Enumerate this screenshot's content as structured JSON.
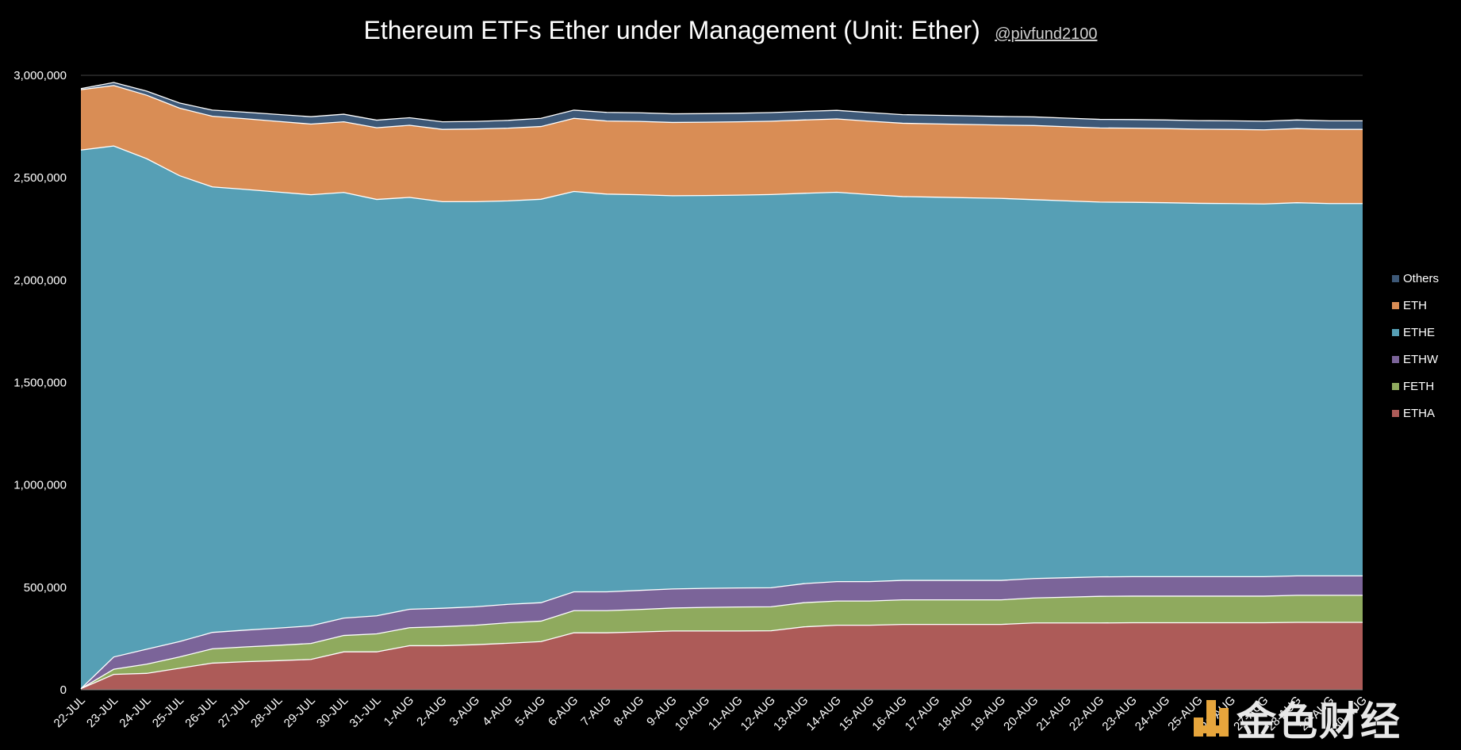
{
  "chart_data": {
    "type": "area",
    "title": "Ethereum ETFs Ether under Management (Unit: Ether)",
    "handle": "@pivfund2100",
    "xlabel": "",
    "ylabel": "",
    "ylim": [
      0,
      3000000
    ],
    "y_ticks": [
      0,
      500000,
      1000000,
      1500000,
      2000000,
      2500000,
      3000000
    ],
    "y_tick_labels": [
      "0",
      "500,000",
      "1,000,000",
      "1,500,000",
      "2,000,000",
      "2,500,000",
      "3,000,000"
    ],
    "stacked": true,
    "grid": "horizontal",
    "legend_position": "right",
    "categories": [
      "22-JUL",
      "23-JUL",
      "24-JUL",
      "25-JUL",
      "26-JUL",
      "27-JUL",
      "28-JUL",
      "29-JUL",
      "30-JUL",
      "31-JUL",
      "1-AUG",
      "2-AUG",
      "3-AUG",
      "4-AUG",
      "5-AUG",
      "6-AUG",
      "7-AUG",
      "8-AUG",
      "9-AUG",
      "10-AUG",
      "11-AUG",
      "12-AUG",
      "13-AUG",
      "14-AUG",
      "15-AUG",
      "16-AUG",
      "17-AUG",
      "18-AUG",
      "19-AUG",
      "20-AUG",
      "21-AUG",
      "22-AUG",
      "23-AUG",
      "24-AUG",
      "25-AUG",
      "26-AUG",
      "27-AUG",
      "28-AUG",
      "29-AUG",
      "30-AUG"
    ],
    "series": [
      {
        "name": "ETHA",
        "color": "#ad5b58",
        "values": [
          5000,
          75000,
          80000,
          105000,
          130000,
          137000,
          142000,
          148000,
          185000,
          185000,
          215000,
          215000,
          220000,
          227000,
          235000,
          278000,
          278000,
          282000,
          287000,
          287000,
          287000,
          288000,
          307000,
          315000,
          315000,
          319000,
          319000,
          319000,
          319000,
          326000,
          326000,
          326000,
          327000,
          327000,
          327000,
          327000,
          327000,
          329000,
          329000,
          329000
        ]
      },
      {
        "name": "FETH",
        "color": "#8faa5e",
        "values": [
          0,
          25000,
          45000,
          55000,
          70000,
          72000,
          75000,
          78000,
          80000,
          88000,
          88000,
          93000,
          95000,
          100000,
          100000,
          108000,
          108000,
          110000,
          112000,
          115000,
          117000,
          117000,
          118000,
          118000,
          118000,
          120000,
          120000,
          120000,
          120000,
          122000,
          126000,
          130000,
          130000,
          130000,
          130000,
          130000,
          130000,
          132000,
          132000,
          132000
        ]
      },
      {
        "name": "ETHW",
        "color": "#7b6499",
        "values": [
          0,
          60000,
          73000,
          75000,
          80000,
          82000,
          84000,
          86000,
          85000,
          88000,
          90000,
          90000,
          90000,
          90000,
          90000,
          92000,
          92000,
          93000,
          93000,
          93000,
          93000,
          93000,
          93000,
          95000,
          95000,
          95000,
          95000,
          95000,
          95000,
          95000,
          95000,
          95000,
          95000,
          95000,
          95000,
          95000,
          95000,
          95000,
          95000,
          95000
        ]
      },
      {
        "name": "ETHE",
        "color": "#569fb5",
        "values": [
          2630000,
          2495000,
          2395000,
          2275000,
          2175000,
          2152000,
          2129000,
          2105000,
          2078000,
          2033000,
          2011000,
          1985000,
          1978000,
          1970000,
          1970000,
          1955000,
          1942000,
          1932000,
          1920000,
          1918000,
          1918000,
          1920000,
          1906000,
          1901000,
          1890000,
          1874000,
          1871000,
          1868000,
          1865000,
          1850000,
          1840000,
          1830000,
          1828000,
          1826000,
          1823000,
          1822000,
          1820000,
          1822000,
          1818000,
          1818000
        ]
      },
      {
        "name": "ETH",
        "color": "#d98d55",
        "values": [
          295000,
          295000,
          310000,
          330000,
          345000,
          345000,
          345000,
          345000,
          345000,
          350000,
          352000,
          353000,
          355000,
          355000,
          355000,
          357000,
          357000,
          358000,
          358000,
          358000,
          358000,
          358000,
          358000,
          358000,
          358000,
          358000,
          358000,
          358000,
          358000,
          362000,
          362000,
          362000,
          362000,
          362000,
          362000,
          362000,
          362000,
          362000,
          362000,
          362000
        ]
      },
      {
        "name": "Others",
        "color": "#3d5877",
        "values": [
          5000,
          15000,
          20000,
          25000,
          30000,
          32000,
          34000,
          36000,
          37000,
          37000,
          37000,
          37000,
          37000,
          38000,
          40000,
          40000,
          42000,
          42000,
          42000,
          42000,
          42000,
          42000,
          42000,
          42000,
          42000,
          42000,
          42000,
          42000,
          42000,
          42000,
          42000,
          42000,
          42000,
          42000,
          42000,
          42000,
          42000,
          42000,
          42000,
          42000
        ]
      }
    ]
  },
  "legend_order": [
    "Others",
    "ETH",
    "ETHE",
    "ETHW",
    "FETH",
    "ETHA"
  ],
  "watermark": {
    "text": "金色财经",
    "icon": "jinse-logo-icon",
    "accent": "#e6a53c"
  }
}
